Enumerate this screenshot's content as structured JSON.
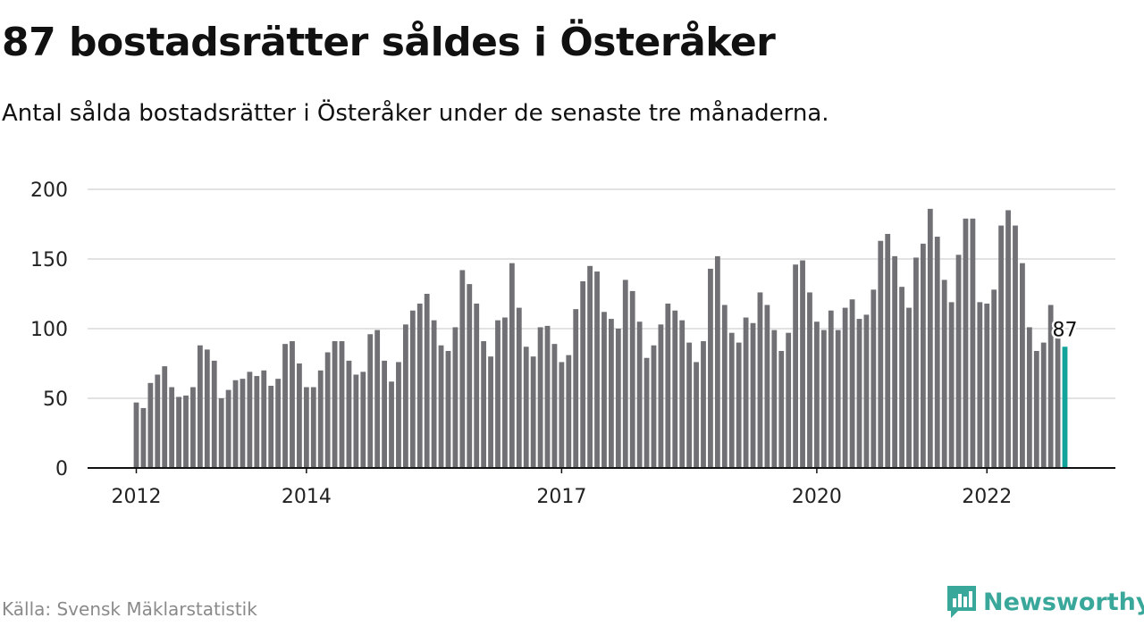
{
  "header": {
    "title": "87 bostadsrätter såldes i Österåker",
    "subtitle": "Antal sålda bostadsrätter i Österåker under de senaste tre månaderna."
  },
  "footer": {
    "source": "Källa: Svensk Mäklarstatistik",
    "brand": "Newsworthy",
    "brand_icon": "bar-chart-logo-icon"
  },
  "colors": {
    "bar": "#707075",
    "highlight": "#12a39a",
    "grid": "#d9d9d9",
    "brand": "#3aa79b"
  },
  "chart_data": {
    "type": "bar",
    "title": "87 bostadsrätter såldes i Österåker",
    "subtitle": "Antal sålda bostadsrätter i Österåker under de senaste tre månaderna.",
    "x_start": "2012-01",
    "frequency": "monthly",
    "x_tick_labels": [
      "2012",
      "2014",
      "2017",
      "2020",
      "2022"
    ],
    "y_ticks": [
      0,
      50,
      100,
      150,
      200
    ],
    "ylim": [
      0,
      200
    ],
    "grid": true,
    "highlight_last": true,
    "last_value_label": "87",
    "values": [
      47,
      43,
      61,
      67,
      73,
      58,
      51,
      52,
      58,
      88,
      85,
      77,
      50,
      56,
      63,
      64,
      69,
      66,
      70,
      59,
      64,
      89,
      91,
      75,
      58,
      58,
      70,
      83,
      91,
      91,
      77,
      67,
      69,
      96,
      99,
      77,
      62,
      76,
      103,
      113,
      118,
      125,
      106,
      88,
      84,
      101,
      142,
      132,
      118,
      91,
      80,
      106,
      108,
      147,
      115,
      87,
      80,
      101,
      102,
      89,
      76,
      81,
      114,
      134,
      145,
      141,
      112,
      107,
      100,
      135,
      127,
      105,
      79,
      88,
      103,
      118,
      113,
      106,
      90,
      76,
      91,
      143,
      152,
      117,
      97,
      90,
      108,
      104,
      126,
      117,
      99,
      84,
      97,
      146,
      149,
      126,
      105,
      99,
      113,
      99,
      115,
      121,
      107,
      110,
      128,
      163,
      168,
      152,
      130,
      115,
      151,
      161,
      186,
      166,
      135,
      119,
      153,
      179,
      179,
      119,
      118,
      128,
      174,
      185,
      174,
      147,
      101,
      84,
      90,
      117,
      93,
      87
    ]
  }
}
